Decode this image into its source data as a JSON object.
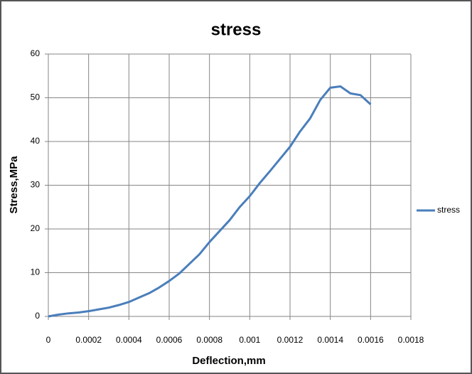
{
  "chart_data": {
    "type": "line",
    "title": "stress",
    "x_label": "Deflection,mm",
    "y_label": "Stress,MPa",
    "x": [
      0,
      5e-05,
      0.0001,
      0.00015,
      0.0002,
      0.00025,
      0.0003,
      0.00035,
      0.0004,
      0.00045,
      0.0005,
      0.00055,
      0.0006,
      0.00065,
      0.0007,
      0.00075,
      0.0008,
      0.00085,
      0.0009,
      0.00095,
      0.001,
      0.00105,
      0.0011,
      0.00115,
      0.0012,
      0.00125,
      0.0013,
      0.00135,
      0.0014,
      0.00145,
      0.0015,
      0.00155,
      0.0016
    ],
    "series": [
      {
        "name": "stress",
        "color": "#4a7ebb",
        "values": [
          0,
          0.4,
          0.7,
          0.9,
          1.2,
          1.6,
          2.0,
          2.6,
          3.3,
          4.3,
          5.3,
          6.6,
          8.1,
          9.8,
          12.0,
          14.2,
          17.0,
          19.5,
          22.0,
          25.0,
          27.5,
          30.5,
          33.2,
          36.0,
          38.8,
          42.3,
          45.3,
          49.5,
          52.3,
          52.6,
          51.0,
          50.6,
          48.5
        ]
      }
    ],
    "xlim": [
      0,
      0.0018
    ],
    "xticks": [
      0,
      0.0002,
      0.0004,
      0.0006,
      0.0008,
      0.001,
      0.0012,
      0.0014,
      0.0016,
      0.0018
    ],
    "ylim": [
      0,
      60
    ],
    "yticks": [
      0,
      10,
      20,
      30,
      40,
      50,
      60
    ],
    "grid": true,
    "legend": "right"
  }
}
